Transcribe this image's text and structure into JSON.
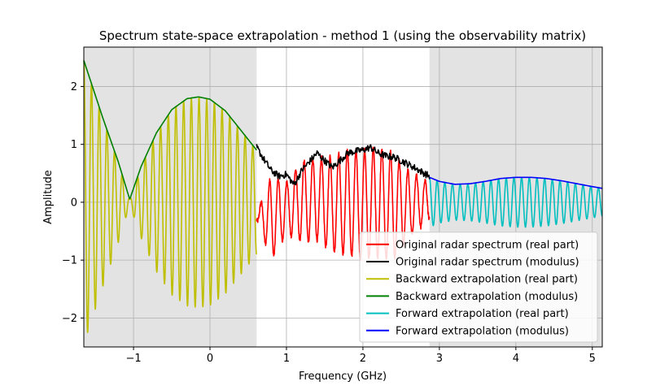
{
  "chart_data": {
    "type": "line",
    "title": "Spectrum state-space extrapolation - method 1 (using the observability matrix)",
    "xlabel": "Frequency (GHz)",
    "ylabel": "Amplitude",
    "xlim": [
      -1.65,
      5.13
    ],
    "ylim": [
      -2.5,
      2.68
    ],
    "xticks": [
      -1,
      0,
      1,
      2,
      3,
      4,
      5
    ],
    "yticks": [
      -2,
      -1,
      0,
      1,
      2
    ],
    "grid": true,
    "legend_position": "bottom-right",
    "shaded_regions": [
      {
        "x": [
          -1.65,
          0.61
        ],
        "color": "#e3e3e3"
      },
      {
        "x": [
          2.87,
          5.13
        ],
        "color": "#e3e3e3"
      }
    ],
    "series": [
      {
        "name": "Original radar spectrum (real part)",
        "color": "#ff0000",
        "kind": "oscillation",
        "x_range": [
          0.61,
          2.87
        ],
        "envelope_x": [
          0.61,
          0.8,
          1.0,
          1.2,
          1.4,
          1.6,
          1.8,
          2.0,
          2.2,
          2.4,
          2.6,
          2.87
        ],
        "envelope_upper": [
          -0.2,
          0.45,
          0.35,
          0.7,
          0.75,
          0.8,
          0.9,
          0.9,
          0.95,
          0.85,
          0.55,
          0.35
        ],
        "envelope_lower": [
          -0.3,
          -1.0,
          -0.55,
          -0.7,
          -0.65,
          -0.85,
          -0.9,
          -1.0,
          -0.95,
          -1.0,
          -0.6,
          -0.3
        ],
        "cycles": 20
      },
      {
        "name": "Original radar spectrum (modulus)",
        "color": "#000000",
        "kind": "curve",
        "x": [
          0.61,
          0.7,
          0.8,
          0.9,
          1.0,
          1.1,
          1.2,
          1.3,
          1.4,
          1.5,
          1.6,
          1.7,
          1.8,
          1.9,
          2.0,
          2.1,
          2.2,
          2.3,
          2.4,
          2.5,
          2.6,
          2.7,
          2.8,
          2.87
        ],
        "y": [
          0.95,
          0.75,
          0.55,
          0.45,
          0.48,
          0.3,
          0.55,
          0.7,
          0.85,
          0.72,
          0.6,
          0.72,
          0.85,
          0.88,
          0.9,
          0.95,
          0.85,
          0.8,
          0.78,
          0.72,
          0.65,
          0.58,
          0.5,
          0.45
        ]
      },
      {
        "name": "Backward extrapolation (real part)",
        "color": "#bfbf00",
        "kind": "oscillation_from_modulus",
        "x_range": [
          -1.65,
          0.61
        ],
        "cycles": 22.5
      },
      {
        "name": "Backward extrapolation (modulus)",
        "color": "#008000",
        "kind": "curve",
        "x": [
          -1.65,
          -1.4,
          -1.2,
          -1.05,
          -0.9,
          -0.7,
          -0.5,
          -0.3,
          -0.15,
          0.0,
          0.2,
          0.4,
          0.61
        ],
        "y": [
          2.45,
          1.45,
          0.7,
          0.05,
          0.62,
          1.2,
          1.6,
          1.79,
          1.82,
          1.78,
          1.58,
          1.25,
          0.9
        ]
      },
      {
        "name": "Forward extrapolation (real part)",
        "color": "#00bfbf",
        "kind": "oscillation_from_modulus",
        "x_range": [
          2.87,
          5.13
        ],
        "cycles": 22.5
      },
      {
        "name": "Forward extrapolation (modulus)",
        "color": "#0000ff",
        "kind": "curve",
        "x": [
          2.87,
          3.0,
          3.2,
          3.4,
          3.6,
          3.8,
          4.0,
          4.2,
          4.4,
          4.6,
          4.8,
          5.0,
          5.13
        ],
        "y": [
          0.43,
          0.36,
          0.31,
          0.32,
          0.36,
          0.41,
          0.43,
          0.43,
          0.41,
          0.37,
          0.32,
          0.27,
          0.24
        ]
      }
    ]
  }
}
